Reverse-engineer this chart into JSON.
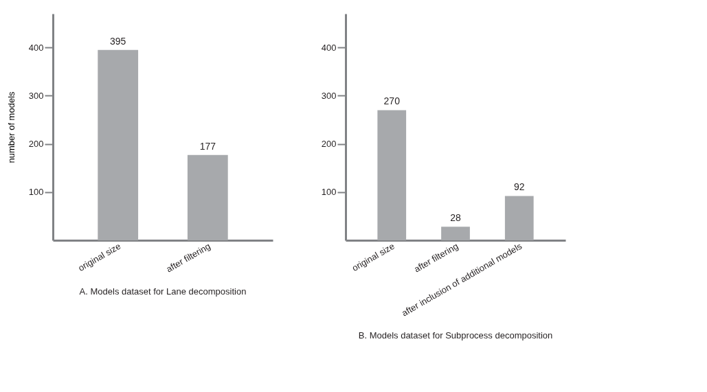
{
  "chart_data": [
    {
      "type": "bar",
      "ylabel": "number of models",
      "categories": [
        "original size",
        "after filtering"
      ],
      "values": [
        395,
        177
      ],
      "color": "#a7a9ac",
      "ylim": [
        0,
        470
      ],
      "yticks": [
        100,
        200,
        300,
        400
      ],
      "data_labels": true,
      "grid": false,
      "annotations": [
        "A. Models dataset for Lane decomposition"
      ]
    },
    {
      "type": "bar",
      "categories": [
        "original size",
        "after filtering",
        "after inclusion of additional models"
      ],
      "values": [
        270,
        28,
        92
      ],
      "color": "#a7a9ac",
      "ylim": [
        0,
        470
      ],
      "yticks": [
        100,
        200,
        300,
        400
      ],
      "data_labels": true,
      "grid": false,
      "annotations": [
        "B. Models dataset for Subprocess decomposition"
      ]
    }
  ]
}
